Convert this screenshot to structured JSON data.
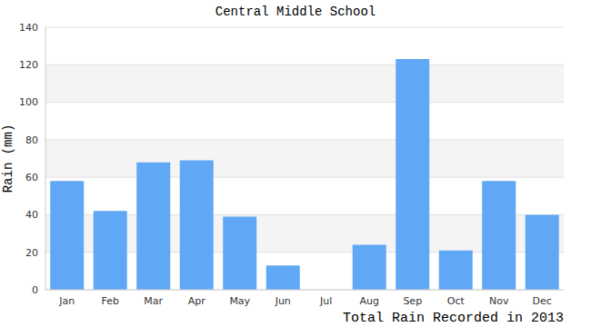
{
  "chart_data": {
    "type": "bar",
    "title": "Central Middle School",
    "y_label": "Rain (mm)",
    "x_label": "Total Rain Recorded in 2013",
    "categories": [
      "Jan",
      "Feb",
      "Mar",
      "Apr",
      "May",
      "Jun",
      "Jul",
      "Aug",
      "Sep",
      "Oct",
      "Nov",
      "Dec"
    ],
    "values": [
      58,
      42,
      68,
      69,
      39,
      13,
      0,
      24,
      123,
      21,
      58,
      40
    ],
    "color": "#60a7f5",
    "ylim": [
      0,
      140
    ],
    "yticks": [
      0,
      20,
      40,
      60,
      80,
      100,
      120,
      140
    ],
    "grid": true
  }
}
